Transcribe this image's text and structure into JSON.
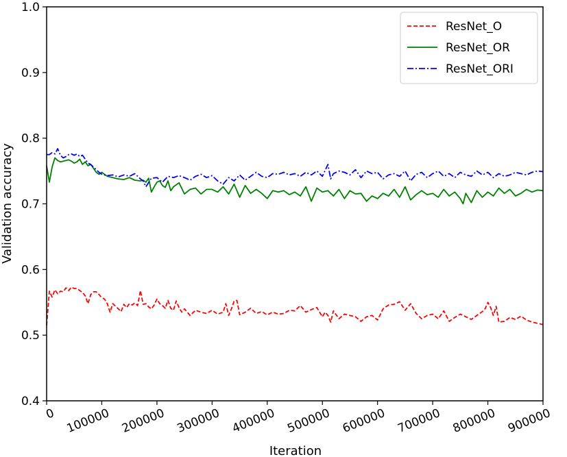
{
  "chart_data": {
    "type": "line",
    "xlabel": "Iteration",
    "ylabel": "Validation accuracy",
    "xlim": [
      0,
      900000
    ],
    "ylim": [
      0.4,
      1.0
    ],
    "x_ticks": [
      0,
      100000,
      200000,
      300000,
      400000,
      500000,
      600000,
      700000,
      800000,
      900000
    ],
    "x_tick_labels": [
      "0",
      "100000",
      "200000",
      "300000",
      "400000",
      "500000",
      "600000",
      "700000",
      "800000",
      "900000"
    ],
    "y_ticks": [
      0.4,
      0.5,
      0.6,
      0.7,
      0.8,
      0.9,
      1.0
    ],
    "y_tick_labels": [
      "0.4",
      "0.5",
      "0.6",
      "0.7",
      "0.8",
      "0.9",
      "1.0"
    ],
    "grid": false,
    "legend_position": "top-right",
    "series": [
      {
        "name": "ResNet_O",
        "color": "#ff0000",
        "style": "dashed",
        "x": [
          0,
          5000,
          10000,
          15000,
          20000,
          25000,
          30000,
          35000,
          40000,
          45000,
          50000,
          55000,
          60000,
          65000,
          70000,
          75000,
          80000,
          85000,
          90000,
          95000,
          100000,
          105000,
          110000,
          115000,
          120000,
          125000,
          130000,
          135000,
          140000,
          145000,
          150000,
          155000,
          160000,
          165000,
          170000,
          175000,
          180000,
          185000,
          190000,
          195000,
          200000,
          205000,
          210000,
          215000,
          220000,
          225000,
          230000,
          235000,
          240000,
          245000,
          250000,
          260000,
          270000,
          280000,
          290000,
          300000,
          310000,
          320000,
          325000,
          330000,
          335000,
          340000,
          345000,
          350000,
          360000,
          370000,
          380000,
          390000,
          400000,
          410000,
          420000,
          430000,
          440000,
          450000,
          460000,
          470000,
          480000,
          490000,
          500000,
          505000,
          510000,
          515000,
          520000,
          530000,
          540000,
          550000,
          560000,
          570000,
          580000,
          590000,
          600000,
          610000,
          620000,
          630000,
          640000,
          650000,
          660000,
          670000,
          680000,
          690000,
          700000,
          710000,
          720000,
          730000,
          740000,
          750000,
          760000,
          770000,
          780000,
          790000,
          795000,
          800000,
          805000,
          810000,
          815000,
          820000,
          830000,
          840000,
          850000,
          860000,
          870000,
          880000,
          890000,
          900000
        ],
        "y": [
          0.515,
          0.567,
          0.558,
          0.569,
          0.563,
          0.567,
          0.566,
          0.572,
          0.568,
          0.573,
          0.571,
          0.571,
          0.568,
          0.565,
          0.56,
          0.548,
          0.562,
          0.566,
          0.566,
          0.562,
          0.557,
          0.555,
          0.548,
          0.535,
          0.548,
          0.544,
          0.54,
          0.536,
          0.547,
          0.542,
          0.548,
          0.546,
          0.549,
          0.545,
          0.568,
          0.547,
          0.548,
          0.543,
          0.54,
          0.546,
          0.555,
          0.548,
          0.545,
          0.541,
          0.553,
          0.541,
          0.538,
          0.552,
          0.542,
          0.535,
          0.54,
          0.53,
          0.538,
          0.535,
          0.533,
          0.538,
          0.532,
          0.535,
          0.548,
          0.53,
          0.54,
          0.552,
          0.553,
          0.531,
          0.535,
          0.541,
          0.533,
          0.536,
          0.531,
          0.535,
          0.532,
          0.533,
          0.538,
          0.537,
          0.545,
          0.535,
          0.539,
          0.542,
          0.528,
          0.535,
          0.53,
          0.52,
          0.537,
          0.525,
          0.532,
          0.53,
          0.528,
          0.521,
          0.528,
          0.53,
          0.523,
          0.54,
          0.546,
          0.547,
          0.551,
          0.538,
          0.548,
          0.533,
          0.525,
          0.53,
          0.532,
          0.525,
          0.537,
          0.521,
          0.527,
          0.532,
          0.528,
          0.524,
          0.53,
          0.536,
          0.54,
          0.55,
          0.542,
          0.53,
          0.544,
          0.52,
          0.521,
          0.527,
          0.524,
          0.529,
          0.523,
          0.52,
          0.518,
          0.516
        ]
      },
      {
        "name": "ResNet_OR",
        "color": "#008000",
        "style": "solid",
        "x": [
          0,
          5000,
          10000,
          15000,
          20000,
          25000,
          30000,
          35000,
          40000,
          45000,
          50000,
          55000,
          60000,
          65000,
          70000,
          75000,
          80000,
          85000,
          90000,
          95000,
          100000,
          110000,
          120000,
          130000,
          140000,
          150000,
          160000,
          170000,
          175000,
          180000,
          185000,
          190000,
          195000,
          200000,
          205000,
          210000,
          215000,
          220000,
          225000,
          230000,
          240000,
          250000,
          260000,
          270000,
          280000,
          290000,
          300000,
          310000,
          320000,
          330000,
          340000,
          350000,
          360000,
          370000,
          380000,
          390000,
          400000,
          410000,
          420000,
          430000,
          440000,
          450000,
          460000,
          470000,
          480000,
          490000,
          500000,
          510000,
          520000,
          530000,
          540000,
          550000,
          560000,
          570000,
          580000,
          590000,
          600000,
          610000,
          620000,
          630000,
          640000,
          650000,
          660000,
          670000,
          680000,
          690000,
          700000,
          710000,
          720000,
          730000,
          740000,
          750000,
          755000,
          760000,
          770000,
          780000,
          790000,
          800000,
          810000,
          820000,
          830000,
          840000,
          850000,
          860000,
          870000,
          880000,
          890000,
          900000
        ],
        "y": [
          0.758,
          0.733,
          0.756,
          0.77,
          0.766,
          0.764,
          0.765,
          0.766,
          0.767,
          0.765,
          0.762,
          0.764,
          0.768,
          0.76,
          0.764,
          0.758,
          0.76,
          0.754,
          0.748,
          0.745,
          0.748,
          0.742,
          0.74,
          0.738,
          0.737,
          0.74,
          0.736,
          0.735,
          0.736,
          0.733,
          0.739,
          0.718,
          0.726,
          0.733,
          0.735,
          0.728,
          0.725,
          0.735,
          0.72,
          0.726,
          0.732,
          0.715,
          0.722,
          0.724,
          0.715,
          0.722,
          0.722,
          0.718,
          0.726,
          0.715,
          0.73,
          0.71,
          0.728,
          0.716,
          0.722,
          0.716,
          0.708,
          0.72,
          0.718,
          0.72,
          0.714,
          0.718,
          0.712,
          0.726,
          0.704,
          0.724,
          0.718,
          0.72,
          0.712,
          0.722,
          0.708,
          0.72,
          0.715,
          0.716,
          0.704,
          0.712,
          0.708,
          0.716,
          0.712,
          0.722,
          0.71,
          0.726,
          0.706,
          0.714,
          0.72,
          0.714,
          0.716,
          0.71,
          0.722,
          0.712,
          0.718,
          0.708,
          0.7,
          0.716,
          0.702,
          0.72,
          0.71,
          0.718,
          0.712,
          0.724,
          0.716,
          0.722,
          0.712,
          0.716,
          0.722,
          0.718,
          0.721,
          0.72
        ]
      },
      {
        "name": "ResNet_ORI",
        "color": "#0000ff",
        "style": "dashdot",
        "x": [
          0,
          5000,
          10000,
          15000,
          20000,
          25000,
          30000,
          35000,
          40000,
          45000,
          50000,
          55000,
          60000,
          65000,
          70000,
          75000,
          80000,
          85000,
          90000,
          95000,
          100000,
          110000,
          120000,
          130000,
          140000,
          150000,
          160000,
          170000,
          175000,
          180000,
          190000,
          200000,
          210000,
          220000,
          230000,
          240000,
          250000,
          260000,
          270000,
          280000,
          290000,
          300000,
          310000,
          320000,
          330000,
          340000,
          350000,
          360000,
          370000,
          380000,
          390000,
          400000,
          410000,
          420000,
          430000,
          440000,
          450000,
          460000,
          470000,
          480000,
          490000,
          500000,
          510000,
          515000,
          520000,
          530000,
          540000,
          550000,
          560000,
          570000,
          580000,
          590000,
          600000,
          610000,
          620000,
          630000,
          640000,
          650000,
          660000,
          670000,
          680000,
          690000,
          700000,
          710000,
          720000,
          730000,
          740000,
          750000,
          760000,
          770000,
          780000,
          790000,
          800000,
          810000,
          820000,
          830000,
          840000,
          850000,
          860000,
          870000,
          880000,
          890000,
          900000
        ],
        "y": [
          0.775,
          0.775,
          0.778,
          0.776,
          0.784,
          0.774,
          0.77,
          0.772,
          0.775,
          0.776,
          0.774,
          0.776,
          0.772,
          0.774,
          0.768,
          0.762,
          0.76,
          0.756,
          0.752,
          0.748,
          0.745,
          0.743,
          0.744,
          0.741,
          0.744,
          0.742,
          0.746,
          0.738,
          0.735,
          0.726,
          0.739,
          0.74,
          0.733,
          0.742,
          0.74,
          0.743,
          0.74,
          0.736,
          0.742,
          0.745,
          0.74,
          0.743,
          0.735,
          0.73,
          0.74,
          0.735,
          0.744,
          0.736,
          0.742,
          0.748,
          0.742,
          0.74,
          0.746,
          0.745,
          0.748,
          0.744,
          0.746,
          0.742,
          0.748,
          0.744,
          0.75,
          0.742,
          0.76,
          0.738,
          0.746,
          0.75,
          0.748,
          0.744,
          0.752,
          0.74,
          0.75,
          0.746,
          0.748,
          0.738,
          0.744,
          0.746,
          0.742,
          0.75,
          0.735,
          0.745,
          0.748,
          0.74,
          0.746,
          0.75,
          0.742,
          0.746,
          0.74,
          0.748,
          0.744,
          0.742,
          0.75,
          0.744,
          0.748,
          0.74,
          0.746,
          0.742,
          0.744,
          0.748,
          0.746,
          0.744,
          0.748,
          0.75,
          0.749
        ]
      }
    ]
  }
}
